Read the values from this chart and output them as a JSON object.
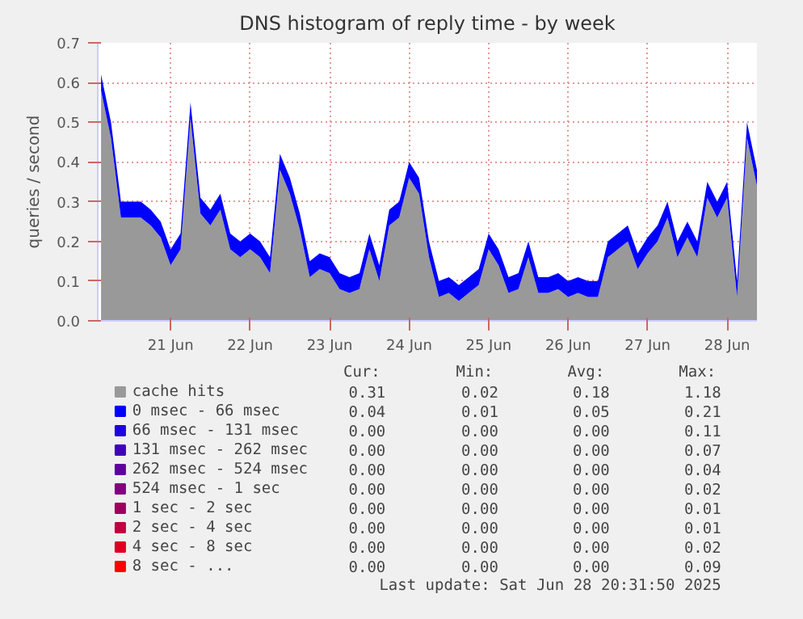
{
  "chart_data": {
    "type": "area",
    "stacked": true,
    "title": "DNS histogram of reply time - by week",
    "ylabel": "queries / second",
    "x": [
      "2025-06-20T15:00",
      "2025-06-20T18:00",
      "2025-06-20T21:00",
      "2025-06-21T00:00",
      "2025-06-21T03:00",
      "2025-06-21T06:00",
      "2025-06-21T09:00",
      "2025-06-21T12:00",
      "2025-06-21T15:00",
      "2025-06-21T18:00",
      "2025-06-21T21:00",
      "2025-06-22T00:00",
      "2025-06-22T03:00",
      "2025-06-22T06:00",
      "2025-06-22T09:00",
      "2025-06-22T12:00",
      "2025-06-22T15:00",
      "2025-06-22T18:00",
      "2025-06-22T21:00",
      "2025-06-23T00:00",
      "2025-06-23T03:00",
      "2025-06-23T06:00",
      "2025-06-23T09:00",
      "2025-06-23T12:00",
      "2025-06-23T15:00",
      "2025-06-23T18:00",
      "2025-06-23T21:00",
      "2025-06-24T00:00",
      "2025-06-24T03:00",
      "2025-06-24T06:00",
      "2025-06-24T09:00",
      "2025-06-24T12:00",
      "2025-06-24T15:00",
      "2025-06-24T18:00",
      "2025-06-24T21:00",
      "2025-06-25T00:00",
      "2025-06-25T03:00",
      "2025-06-25T06:00",
      "2025-06-25T09:00",
      "2025-06-25T12:00",
      "2025-06-25T15:00",
      "2025-06-25T18:00",
      "2025-06-25T21:00",
      "2025-06-26T00:00",
      "2025-06-26T03:00",
      "2025-06-26T06:00",
      "2025-06-26T09:00",
      "2025-06-26T12:00",
      "2025-06-26T15:00",
      "2025-06-26T18:00",
      "2025-06-26T21:00",
      "2025-06-27T00:00",
      "2025-06-27T03:00",
      "2025-06-27T06:00",
      "2025-06-27T09:00",
      "2025-06-27T12:00",
      "2025-06-27T15:00",
      "2025-06-27T18:00",
      "2025-06-27T21:00",
      "2025-06-28T00:00",
      "2025-06-28T03:00",
      "2025-06-28T06:00",
      "2025-06-28T09:00",
      "2025-06-28T12:00",
      "2025-06-28T15:00",
      "2025-06-28T18:00",
      "2025-06-28T21:00"
    ],
    "series": [
      {
        "name": "cache hits",
        "color": "#999999",
        "values": [
          0.58,
          0.46,
          0.26,
          0.26,
          0.26,
          0.24,
          0.21,
          0.14,
          0.18,
          0.51,
          0.27,
          0.24,
          0.28,
          0.18,
          0.16,
          0.18,
          0.16,
          0.12,
          0.38,
          0.32,
          0.23,
          0.11,
          0.13,
          0.12,
          0.08,
          0.07,
          0.08,
          0.18,
          0.1,
          0.24,
          0.26,
          0.36,
          0.32,
          0.16,
          0.06,
          0.07,
          0.05,
          0.07,
          0.09,
          0.18,
          0.14,
          0.07,
          0.08,
          0.16,
          0.07,
          0.07,
          0.08,
          0.06,
          0.07,
          0.06,
          0.06,
          0.16,
          0.18,
          0.2,
          0.13,
          0.17,
          0.2,
          0.26,
          0.16,
          0.21,
          0.16,
          0.31,
          0.26,
          0.31,
          0.06,
          0.46,
          0.34
        ]
      },
      {
        "name": "0 msec - 66 msec",
        "color": "#0000ff",
        "values": [
          0.04,
          0.04,
          0.04,
          0.04,
          0.04,
          0.04,
          0.04,
          0.04,
          0.04,
          0.04,
          0.04,
          0.04,
          0.04,
          0.04,
          0.04,
          0.04,
          0.04,
          0.04,
          0.04,
          0.04,
          0.04,
          0.04,
          0.04,
          0.04,
          0.04,
          0.04,
          0.04,
          0.04,
          0.04,
          0.04,
          0.04,
          0.04,
          0.04,
          0.04,
          0.04,
          0.04,
          0.04,
          0.04,
          0.04,
          0.04,
          0.04,
          0.04,
          0.04,
          0.04,
          0.04,
          0.04,
          0.04,
          0.04,
          0.04,
          0.04,
          0.04,
          0.04,
          0.04,
          0.04,
          0.04,
          0.04,
          0.04,
          0.04,
          0.04,
          0.04,
          0.04,
          0.04,
          0.04,
          0.04,
          0.04,
          0.04,
          0.04
        ]
      },
      {
        "name": "66 msec - 131 msec",
        "color": "#2000df",
        "values": [
          null,
          null,
          null,
          null,
          null,
          null,
          null,
          null,
          null,
          null,
          null,
          null,
          null,
          null,
          null,
          null,
          null,
          null,
          null,
          null,
          null,
          null,
          null,
          null,
          null,
          null,
          null,
          null,
          null,
          null,
          null,
          null,
          null,
          null,
          null,
          null,
          null,
          null,
          null,
          null,
          null,
          null,
          null,
          null,
          null,
          null,
          null,
          null,
          null,
          null,
          null,
          null,
          null,
          null,
          null,
          null,
          null,
          null,
          null,
          null,
          null,
          null,
          null,
          null,
          null,
          null,
          null
        ]
      },
      {
        "name": "131 msec - 262 msec",
        "color": "#4000bf",
        "values": [
          null,
          null,
          null,
          null,
          null,
          null,
          null,
          null,
          null,
          null,
          null,
          null,
          null,
          null,
          null,
          null,
          null,
          null,
          null,
          null,
          null,
          null,
          null,
          null,
          null,
          null,
          null,
          null,
          null,
          null,
          null,
          null,
          null,
          null,
          null,
          null,
          null,
          null,
          null,
          null,
          null,
          null,
          null,
          null,
          null,
          null,
          null,
          null,
          null,
          null,
          null,
          null,
          null,
          null,
          null,
          null,
          null,
          null,
          null,
          null,
          null,
          null,
          null,
          null,
          null,
          null,
          null
        ]
      },
      {
        "name": "262 msec - 524 msec",
        "color": "#60009f",
        "values": [
          null,
          null,
          null,
          null,
          null,
          null,
          null,
          null,
          null,
          null,
          null,
          null,
          null,
          null,
          null,
          null,
          null,
          null,
          null,
          null,
          null,
          null,
          null,
          null,
          null,
          null,
          null,
          null,
          null,
          null,
          null,
          null,
          null,
          null,
          null,
          null,
          null,
          null,
          null,
          null,
          null,
          null,
          null,
          null,
          null,
          null,
          null,
          null,
          null,
          null,
          null,
          null,
          null,
          null,
          null,
          null,
          null,
          null,
          null,
          null,
          null,
          null,
          null,
          null,
          null,
          null,
          null
        ]
      },
      {
        "name": "524 msec - 1 sec",
        "color": "#80007f",
        "values": [
          null,
          null,
          null,
          null,
          null,
          null,
          null,
          null,
          null,
          null,
          null,
          null,
          null,
          null,
          null,
          null,
          null,
          null,
          null,
          null,
          null,
          null,
          null,
          null,
          null,
          null,
          null,
          null,
          null,
          null,
          null,
          null,
          null,
          null,
          null,
          null,
          null,
          null,
          null,
          null,
          null,
          null,
          null,
          null,
          null,
          null,
          null,
          null,
          null,
          null,
          null,
          null,
          null,
          null,
          null,
          null,
          null,
          null,
          null,
          null,
          null,
          null,
          null,
          null,
          null,
          null,
          null
        ]
      },
      {
        "name": "1 sec - 2 sec",
        "color": "#9f0060",
        "values": [
          null,
          null,
          null,
          null,
          null,
          null,
          null,
          null,
          null,
          null,
          null,
          null,
          null,
          null,
          null,
          null,
          null,
          null,
          null,
          null,
          null,
          null,
          null,
          null,
          null,
          null,
          null,
          null,
          null,
          null,
          null,
          null,
          null,
          null,
          null,
          null,
          null,
          null,
          null,
          null,
          null,
          null,
          null,
          null,
          null,
          null,
          null,
          null,
          null,
          null,
          null,
          null,
          null,
          null,
          null,
          null,
          null,
          null,
          null,
          null,
          null,
          null,
          null,
          null,
          null,
          null,
          null
        ]
      },
      {
        "name": "2 sec - 4 sec",
        "color": "#bf0040",
        "values": [
          null,
          null,
          null,
          null,
          null,
          null,
          null,
          null,
          null,
          null,
          null,
          null,
          null,
          null,
          null,
          null,
          null,
          null,
          null,
          null,
          null,
          null,
          null,
          null,
          null,
          null,
          null,
          null,
          null,
          null,
          null,
          null,
          null,
          null,
          null,
          null,
          null,
          null,
          null,
          null,
          null,
          null,
          null,
          null,
          null,
          null,
          null,
          null,
          null,
          null,
          null,
          null,
          null,
          null,
          null,
          null,
          null,
          null,
          null,
          null,
          null,
          null,
          null,
          null,
          null,
          null,
          null
        ]
      },
      {
        "name": "4 sec - 8 sec",
        "color": "#df0020",
        "values": [
          null,
          null,
          null,
          null,
          null,
          null,
          null,
          null,
          null,
          null,
          null,
          null,
          null,
          null,
          null,
          null,
          null,
          null,
          null,
          null,
          null,
          null,
          null,
          null,
          null,
          null,
          null,
          null,
          null,
          null,
          null,
          null,
          null,
          null,
          null,
          null,
          null,
          null,
          null,
          null,
          null,
          null,
          null,
          null,
          null,
          null,
          null,
          null,
          null,
          null,
          null,
          null,
          null,
          null,
          null,
          null,
          null,
          null,
          null,
          null,
          null,
          null,
          null,
          null,
          null,
          null,
          null
        ]
      },
      {
        "name": "8 sec - ...",
        "color": "#ff0000",
        "values": [
          null,
          null,
          null,
          null,
          null,
          null,
          null,
          null,
          null,
          null,
          null,
          null,
          null,
          null,
          null,
          null,
          null,
          null,
          null,
          null,
          null,
          null,
          null,
          null,
          null,
          null,
          null,
          null,
          null,
          null,
          null,
          null,
          null,
          null,
          null,
          null,
          null,
          null,
          null,
          null,
          null,
          null,
          null,
          null,
          null,
          null,
          null,
          null,
          null,
          null,
          null,
          null,
          null,
          null,
          null,
          null,
          null,
          null,
          null,
          null,
          null,
          null,
          null,
          null,
          null,
          null,
          null
        ]
      }
    ],
    "xlim": [
      "2025-06-20T14:00",
      "2025-06-28T21:00"
    ],
    "xticks": [
      {
        "value": "2025-06-21T12:00",
        "label": "21 Jun"
      },
      {
        "value": "2025-06-22T12:00",
        "label": "22 Jun"
      },
      {
        "value": "2025-06-23T12:00",
        "label": "23 Jun"
      },
      {
        "value": "2025-06-24T12:00",
        "label": "24 Jun"
      },
      {
        "value": "2025-06-25T12:00",
        "label": "25 Jun"
      },
      {
        "value": "2025-06-26T12:00",
        "label": "26 Jun"
      },
      {
        "value": "2025-06-27T12:00",
        "label": "27 Jun"
      },
      {
        "value": "2025-06-28T12:00",
        "label": "28 Jun"
      }
    ],
    "ylim": [
      0,
      0.7
    ],
    "yticks": [
      {
        "value": 0,
        "label": "0.0"
      },
      0.1,
      0.2,
      0.3,
      0.4,
      0.5,
      0.6,
      0.7
    ],
    "grid": true,
    "legend": "bottom",
    "annotations": [
      "Cur:",
      "Min:",
      "Avg:",
      "Max:",
      "0.31",
      "0.02",
      "0.18",
      "1.18",
      "0.04",
      "0.01",
      "0.05",
      "0.21",
      "0.00",
      "0.00",
      "0.00",
      "0.11",
      "0.00",
      "0.00",
      "0.00",
      "0.07",
      "0.00",
      "0.00",
      "0.00",
      "0.04",
      "0.00",
      "0.00",
      "0.00",
      "0.02",
      "0.00",
      "0.00",
      "0.00",
      "0.01",
      "0.00",
      "0.00",
      "0.00",
      "0.01",
      "0.00",
      "0.00",
      "0.00",
      "0.02",
      "0.00",
      "0.00",
      "0.00",
      "0.09",
      "Last update: Sat Jun 28 20:31:50 2025"
    ]
  }
}
